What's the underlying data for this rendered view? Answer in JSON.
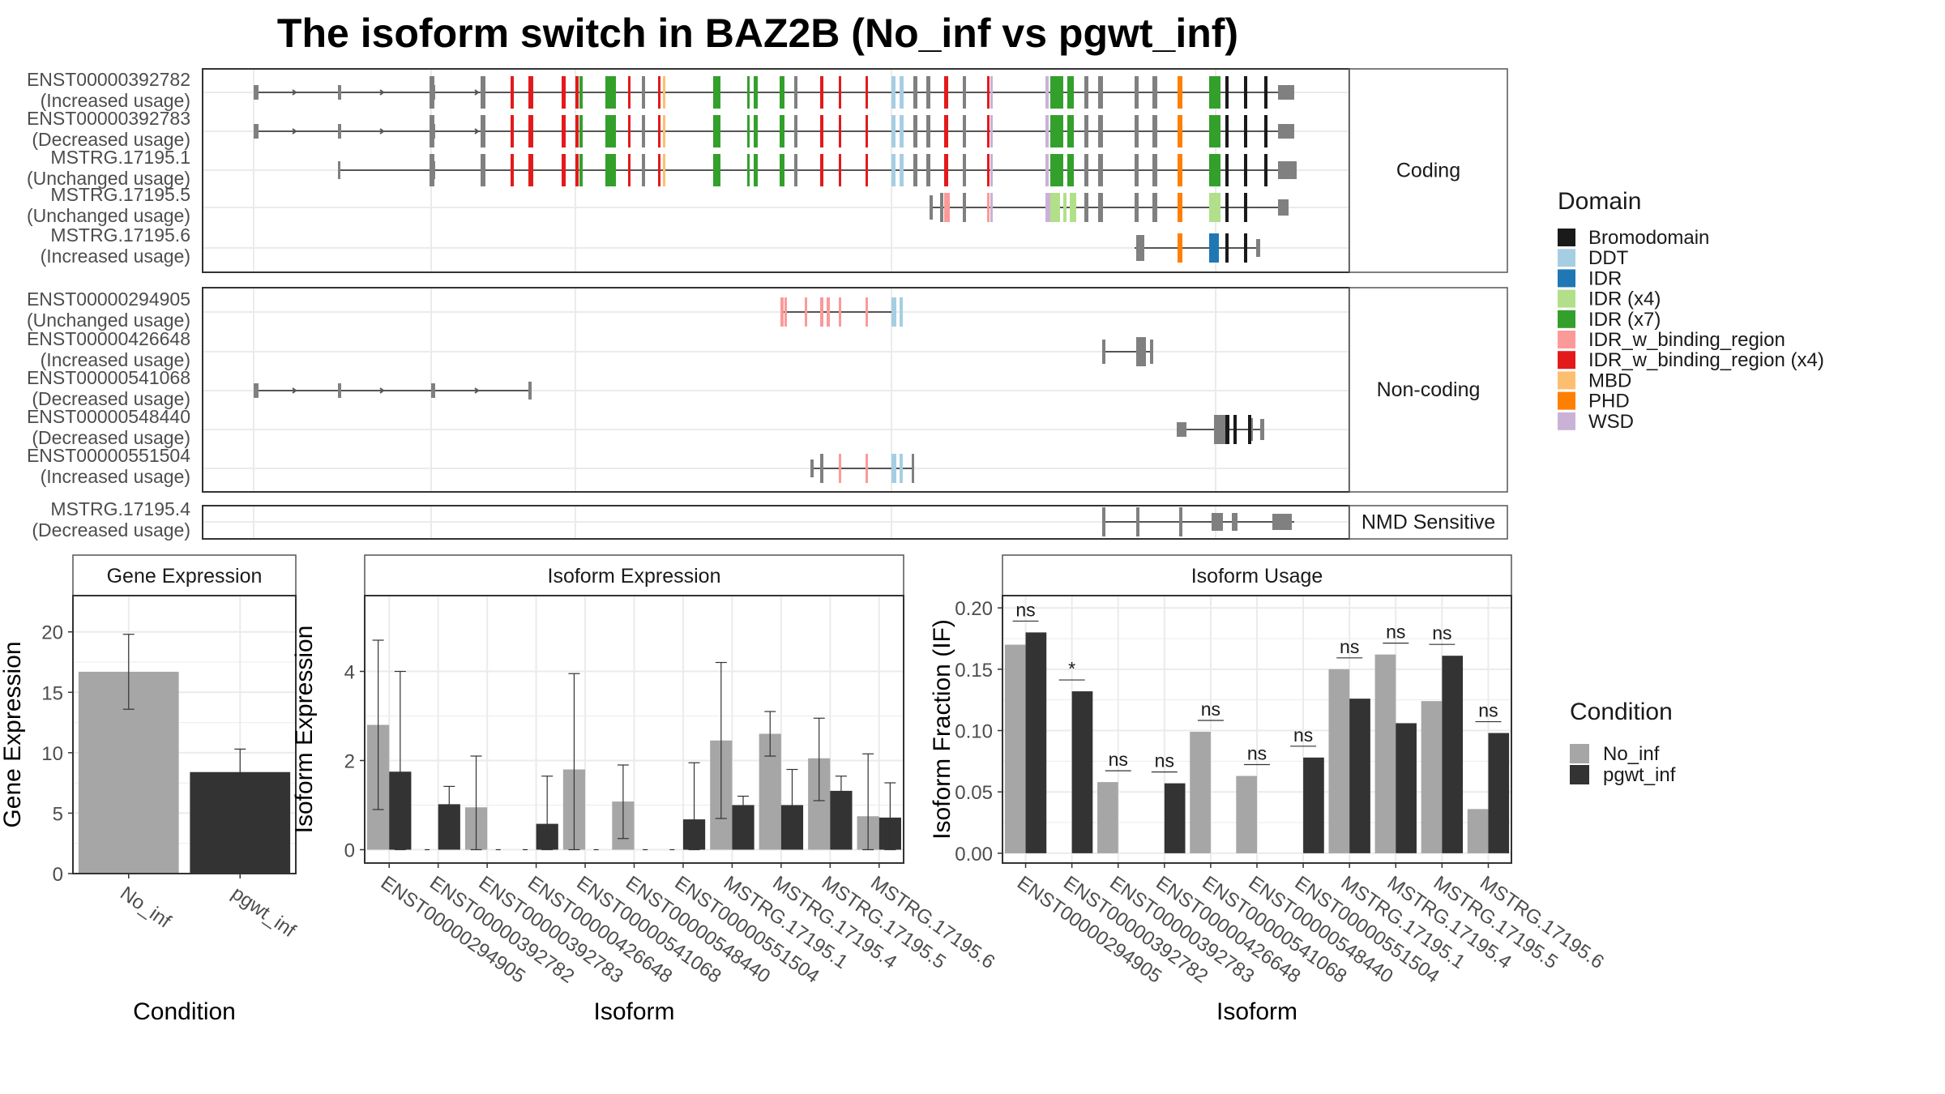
{
  "title": "The isoform switch in BAZ2B (No_inf vs pgwt_inf)",
  "colors": {
    "no_inf": "#a6a6a6",
    "pgwt_inf": "#333333",
    "exon": "#808080",
    "intron": "#555555",
    "strip": "#f2f2f2",
    "grid": "#ebebeb",
    "frame": "#333333"
  },
  "structure": {
    "panels": [
      {
        "label": "Coding",
        "transcripts": [
          {
            "id": "ENST00000392782",
            "usage": "(Increased usage)"
          },
          {
            "id": "ENST00000392783",
            "usage": "(Decreased usage)"
          },
          {
            "id": "MSTRG.17195.1",
            "usage": "(Unchanged usage)"
          },
          {
            "id": "MSTRG.17195.5",
            "usage": "(Unchanged usage)"
          },
          {
            "id": "MSTRG.17195.6",
            "usage": "(Increased usage)"
          }
        ]
      },
      {
        "label": "Non-coding",
        "transcripts": [
          {
            "id": "ENST00000294905",
            "usage": "(Unchanged usage)"
          },
          {
            "id": "ENST00000426648",
            "usage": "(Increased usage)"
          },
          {
            "id": "ENST00000541068",
            "usage": "(Decreased usage)"
          },
          {
            "id": "ENST00000548440",
            "usage": "(Decreased usage)"
          },
          {
            "id": "ENST00000551504",
            "usage": "(Increased usage)"
          }
        ]
      },
      {
        "label": "NMD Sensitive",
        "transcripts": [
          {
            "id": "MSTRG.17195.4",
            "usage": "(Decreased usage)"
          }
        ]
      }
    ],
    "domain_legend": {
      "title": "Domain",
      "items": [
        {
          "label": "Bromodomain",
          "color": "#1a1a1a"
        },
        {
          "label": "DDT",
          "color": "#a6cee3"
        },
        {
          "label": "IDR",
          "color": "#1f78b4"
        },
        {
          "label": "IDR (x4)",
          "color": "#b2df8a"
        },
        {
          "label": "IDR (x7)",
          "color": "#33a02c"
        },
        {
          "label": "IDR_w_binding_region",
          "color": "#fb9a99"
        },
        {
          "label": "IDR_w_binding_region (x4)",
          "color": "#e31a1c"
        },
        {
          "label": "MBD",
          "color": "#fdbf6f"
        },
        {
          "label": "PHD",
          "color": "#ff7f00"
        },
        {
          "label": "WSD",
          "color": "#cab2d6"
        }
      ]
    }
  },
  "condition_legend": {
    "title": "Condition",
    "items": [
      {
        "label": "No_inf",
        "color": "#a6a6a6"
      },
      {
        "label": "pgwt_inf",
        "color": "#333333"
      }
    ]
  },
  "chart_data": [
    {
      "type": "bar",
      "title": "Gene Expression",
      "xlabel": "Condition",
      "ylabel": "Gene Expression",
      "categories": [
        "No_inf",
        "pgwt_inf"
      ],
      "values": [
        16.7,
        8.4
      ],
      "error_low": [
        13.6,
        6.5
      ],
      "error_high": [
        19.8,
        10.3
      ],
      "ylim": [
        0,
        23
      ],
      "yticks": [
        0,
        5,
        10,
        15,
        20
      ]
    },
    {
      "type": "bar",
      "title": "Isoform Expression",
      "xlabel": "Isoform",
      "ylabel": "Isoform Expression",
      "categories": [
        "ENST00000294905",
        "ENST00000392782",
        "ENST00000392783",
        "ENST00000426648",
        "ENST00000541068",
        "ENST00000548440",
        "ENST00000551504",
        "MSTRG.17195.1",
        "MSTRG.17195.4",
        "MSTRG.17195.5",
        "MSTRG.17195.6"
      ],
      "series": [
        {
          "name": "No_inf",
          "values": [
            2.8,
            0,
            0.95,
            0,
            1.8,
            1.08,
            0,
            2.45,
            2.6,
            2.05,
            0.75
          ],
          "error_low": [
            0.9,
            0,
            0,
            0,
            0,
            0.25,
            0,
            0.7,
            2.1,
            1.1,
            0
          ],
          "error_high": [
            4.7,
            0,
            2.1,
            0,
            3.95,
            1.9,
            0,
            4.2,
            3.1,
            2.95,
            2.15
          ]
        },
        {
          "name": "pgwt_inf",
          "values": [
            1.75,
            1.02,
            0,
            0.58,
            0,
            0,
            0.68,
            1.0,
            1.0,
            1.32,
            0.72
          ],
          "error_low": [
            0,
            0.65,
            0,
            0,
            0,
            0,
            0,
            0.8,
            0.2,
            1.0,
            0
          ],
          "error_high": [
            4.0,
            1.42,
            0,
            1.65,
            0,
            0,
            1.95,
            1.2,
            1.8,
            1.65,
            1.5
          ]
        }
      ],
      "ylim": [
        -0.3,
        5.7
      ],
      "yticks": [
        0,
        2,
        4
      ]
    },
    {
      "type": "bar",
      "title": "Isoform Usage",
      "xlabel": "Isoform",
      "ylabel": "Isoform Fraction (IF)",
      "categories": [
        "ENST00000294905",
        "ENST00000392782",
        "ENST00000392783",
        "ENST00000426648",
        "ENST00000541068",
        "ENST00000548440",
        "ENST00000551504",
        "MSTRG.17195.1",
        "MSTRG.17195.4",
        "MSTRG.17195.5",
        "MSTRG.17195.6"
      ],
      "series": [
        {
          "name": "No_inf",
          "values": [
            0.17,
            0,
            0.058,
            0,
            0.099,
            0.063,
            0,
            0.15,
            0.162,
            0.124,
            0.036
          ]
        },
        {
          "name": "pgwt_inf",
          "values": [
            0.18,
            0.132,
            0,
            0.057,
            0,
            0,
            0.078,
            0.126,
            0.106,
            0.161,
            0.098
          ]
        }
      ],
      "significance": [
        "ns",
        "*",
        "ns",
        "ns",
        "ns",
        "ns",
        "ns",
        "ns",
        "ns",
        "ns",
        "ns"
      ],
      "ylim": [
        -0.008,
        0.21
      ],
      "yticks": [
        "0.00",
        "0.05",
        "0.10",
        "0.15",
        "0.20"
      ]
    }
  ]
}
